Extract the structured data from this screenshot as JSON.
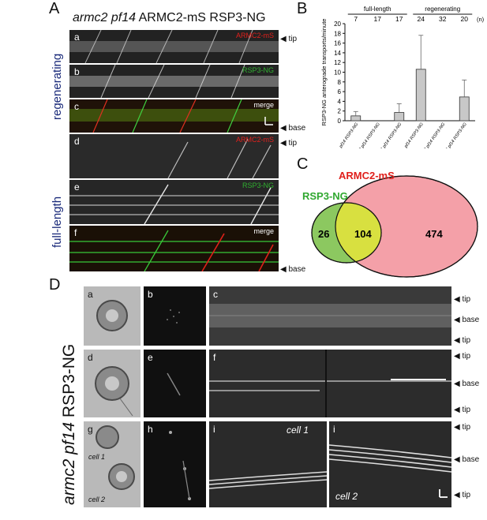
{
  "panelA": {
    "label": "A",
    "title_italic": "armc2 pf14",
    "title_rest": " ARMC2-mS RSP3-NG",
    "group_regenerating": "regenerating",
    "group_fulllength": "full-length",
    "panels": [
      {
        "letter": "a",
        "tag": "ARMC2-mS",
        "tag_color": "#e0201c"
      },
      {
        "letter": "b",
        "tag": "RSP3-NG",
        "tag_color": "#30b030"
      },
      {
        "letter": "c",
        "tag": "merge",
        "tag_color": "#ffffff"
      },
      {
        "letter": "d",
        "tag": "ARMC2-mS",
        "tag_color": "#e0201c"
      },
      {
        "letter": "e",
        "tag": "RSP3-NG",
        "tag_color": "#30b030"
      },
      {
        "letter": "f",
        "tag": "merge",
        "tag_color": "#ffffff"
      }
    ],
    "tip": "tip",
    "base": "base"
  },
  "panelB": {
    "label": "B",
    "header_full": "full-length",
    "header_regen": "regenerating",
    "n_label": "(n)",
    "chart_data": {
      "type": "bar",
      "ylabel": "RSP3-NG anterograde transports/minute",
      "ylim": [
        0,
        20
      ],
      "yticks": [
        0,
        2,
        4,
        6,
        8,
        10,
        12,
        14,
        16,
        18,
        20
      ],
      "categories": [
        "pf14 RSP3-NG",
        "armc2 pf14 RSP3-NG",
        "armc2 ARMC2-mS pf14 RSP3-NG",
        "pf14 RSP3-NG",
        "armc2 pf14 RSP3-NG",
        "armc2 ARMC2-mS pf14 RSP3-NG"
      ],
      "n": [
        "7",
        "17",
        "17",
        "24",
        "32",
        "20"
      ],
      "values": [
        1.0,
        0,
        1.7,
        10.6,
        0,
        4.9
      ],
      "errors": [
        0.9,
        0,
        1.8,
        7.0,
        0,
        3.5
      ]
    }
  },
  "panelC": {
    "label": "C",
    "set_armc2": "ARMC2-mS",
    "set_rsp3": "RSP3-NG",
    "only_rsp3": "26",
    "both": "104",
    "only_armc2": "474",
    "color_armc2": "#f4a0a8",
    "color_rsp3": "#8cc860",
    "color_overlap": "#d8e040"
  },
  "panelD": {
    "label": "D",
    "vertical_italic": "armc2 pf14",
    "vertical_rest": " RSP3-NG",
    "letters": [
      "a",
      "b",
      "c",
      "d",
      "e",
      "f",
      "g",
      "h",
      "i",
      "i"
    ],
    "cell1": "cell 1",
    "cell2": "cell 2",
    "tip": "tip",
    "base": "base"
  }
}
